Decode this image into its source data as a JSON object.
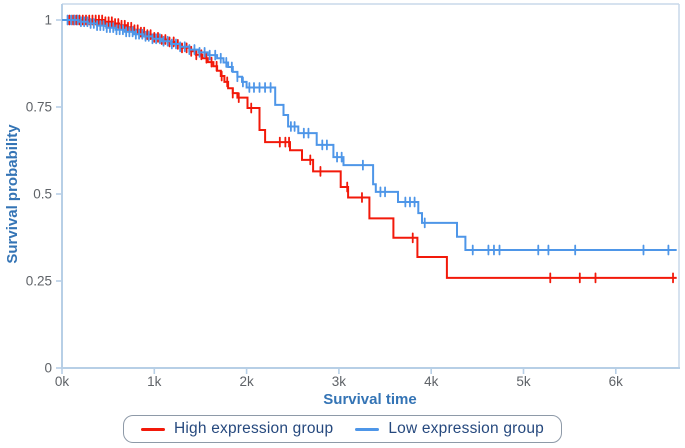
{
  "figure": {
    "title": ""
  },
  "legend": {
    "items": [
      {
        "label": "High expression group",
        "color": "#f2190a"
      },
      {
        "label": "Low expression group",
        "color": "#4e96e8"
      }
    ]
  },
  "colors": {
    "high_group": "#f2190a",
    "low_group": "#4e96e8",
    "axis_line": "#b7cfe6",
    "panel_border": "#c8d8ea",
    "tick_text": "#5f6368",
    "axis_title_text": "#3474b5",
    "legend_text": "#26497e",
    "legend_border": "#8e9aa8",
    "background": "#ffffff"
  },
  "chart_data": {
    "type": "line",
    "subtype": "kaplan-meier-step-survival",
    "title": "",
    "xlabel": "Survival time",
    "ylabel": "Survival probability",
    "xlim": [
      0,
      6700
    ],
    "ylim": [
      0,
      1.05
    ],
    "grid": false,
    "legend_position": "bottom",
    "x_ticks": [
      {
        "value": 0,
        "label": "0k"
      },
      {
        "value": 1000,
        "label": "1k"
      },
      {
        "value": 2000,
        "label": "2k"
      },
      {
        "value": 3000,
        "label": "3k"
      },
      {
        "value": 4000,
        "label": "4k"
      },
      {
        "value": 5000,
        "label": "5k"
      },
      {
        "value": 6000,
        "label": "6k"
      }
    ],
    "y_ticks": [
      {
        "value": 0,
        "label": "0"
      },
      {
        "value": 0.25,
        "label": "0.25"
      },
      {
        "value": 0.5,
        "label": "0.5"
      },
      {
        "value": 0.75,
        "label": "0.75"
      },
      {
        "value": 1,
        "label": "1"
      }
    ],
    "series": [
      {
        "name": "High expression group",
        "color": "#f2190a",
        "steps": [
          [
            0,
            1.0
          ],
          [
            450,
            0.995
          ],
          [
            550,
            0.99
          ],
          [
            620,
            0.985
          ],
          [
            700,
            0.979
          ],
          [
            780,
            0.972
          ],
          [
            850,
            0.965
          ],
          [
            920,
            0.958
          ],
          [
            1000,
            0.95
          ],
          [
            1080,
            0.944
          ],
          [
            1150,
            0.937
          ],
          [
            1220,
            0.93
          ],
          [
            1300,
            0.92
          ],
          [
            1380,
            0.91
          ],
          [
            1450,
            0.9
          ],
          [
            1520,
            0.89
          ],
          [
            1580,
            0.879
          ],
          [
            1640,
            0.867
          ],
          [
            1680,
            0.854
          ],
          [
            1720,
            0.839
          ],
          [
            1760,
            0.822
          ],
          [
            1800,
            0.804
          ],
          [
            1850,
            0.79
          ],
          [
            1900,
            0.777
          ],
          [
            2010,
            0.747
          ],
          [
            2140,
            0.684
          ],
          [
            2200,
            0.649
          ],
          [
            2470,
            0.626
          ],
          [
            2600,
            0.598
          ],
          [
            2720,
            0.565
          ],
          [
            3020,
            0.52
          ],
          [
            3100,
            0.49
          ],
          [
            3330,
            0.43
          ],
          [
            3590,
            0.374
          ],
          [
            3850,
            0.319
          ],
          [
            4170,
            0.259
          ],
          [
            6660,
            0.259
          ]
        ],
        "censor_times": [
          80,
          120,
          155,
          190,
          225,
          260,
          295,
          330,
          365,
          400,
          435,
          470,
          505,
          540,
          575,
          610,
          645,
          680,
          715,
          750,
          785,
          820,
          855,
          890,
          925,
          960,
          1000,
          1040,
          1080,
          1120,
          1165,
          1210,
          1255,
          1300,
          1350,
          1400,
          1455,
          1510,
          1565,
          1620,
          1675,
          1730,
          1790,
          1850,
          1915,
          2050,
          2360,
          2420,
          2460,
          2690,
          2800,
          3090,
          3250,
          3800,
          5290,
          5610,
          5780,
          6620
        ]
      },
      {
        "name": "Low expression group",
        "color": "#4e96e8",
        "steps": [
          [
            0,
            1.0
          ],
          [
            180,
            0.995
          ],
          [
            280,
            0.99
          ],
          [
            380,
            0.984
          ],
          [
            480,
            0.978
          ],
          [
            580,
            0.972
          ],
          [
            680,
            0.966
          ],
          [
            780,
            0.959
          ],
          [
            880,
            0.953
          ],
          [
            980,
            0.946
          ],
          [
            1080,
            0.939
          ],
          [
            1180,
            0.931
          ],
          [
            1280,
            0.923
          ],
          [
            1380,
            0.915
          ],
          [
            1480,
            0.907
          ],
          [
            1580,
            0.899
          ],
          [
            1680,
            0.89
          ],
          [
            1750,
            0.878
          ],
          [
            1800,
            0.865
          ],
          [
            1850,
            0.851
          ],
          [
            1900,
            0.837
          ],
          [
            1950,
            0.822
          ],
          [
            2000,
            0.806
          ],
          [
            2310,
            0.756
          ],
          [
            2400,
            0.727
          ],
          [
            2450,
            0.694
          ],
          [
            2560,
            0.675
          ],
          [
            2760,
            0.641
          ],
          [
            2940,
            0.606
          ],
          [
            3050,
            0.583
          ],
          [
            3370,
            0.528
          ],
          [
            3400,
            0.506
          ],
          [
            3640,
            0.477
          ],
          [
            3860,
            0.445
          ],
          [
            3900,
            0.417
          ],
          [
            4280,
            0.377
          ],
          [
            4370,
            0.339
          ],
          [
            6660,
            0.339
          ]
        ],
        "censor_times": [
          60,
          100,
          135,
          170,
          205,
          240,
          275,
          310,
          345,
          380,
          415,
          450,
          485,
          520,
          555,
          590,
          625,
          660,
          695,
          730,
          765,
          800,
          835,
          870,
          905,
          940,
          980,
          1020,
          1060,
          1100,
          1145,
          1190,
          1235,
          1280,
          1330,
          1380,
          1435,
          1490,
          1545,
          1600,
          1660,
          1720,
          1780,
          1840,
          1900,
          1960,
          2030,
          2080,
          2140,
          2200,
          2260,
          2480,
          2520,
          2620,
          2670,
          2820,
          2870,
          2980,
          3030,
          3260,
          3450,
          3500,
          3720,
          3770,
          3820,
          3930,
          4450,
          4620,
          4680,
          4740,
          5160,
          5270,
          5560,
          6300,
          6570
        ]
      }
    ]
  }
}
